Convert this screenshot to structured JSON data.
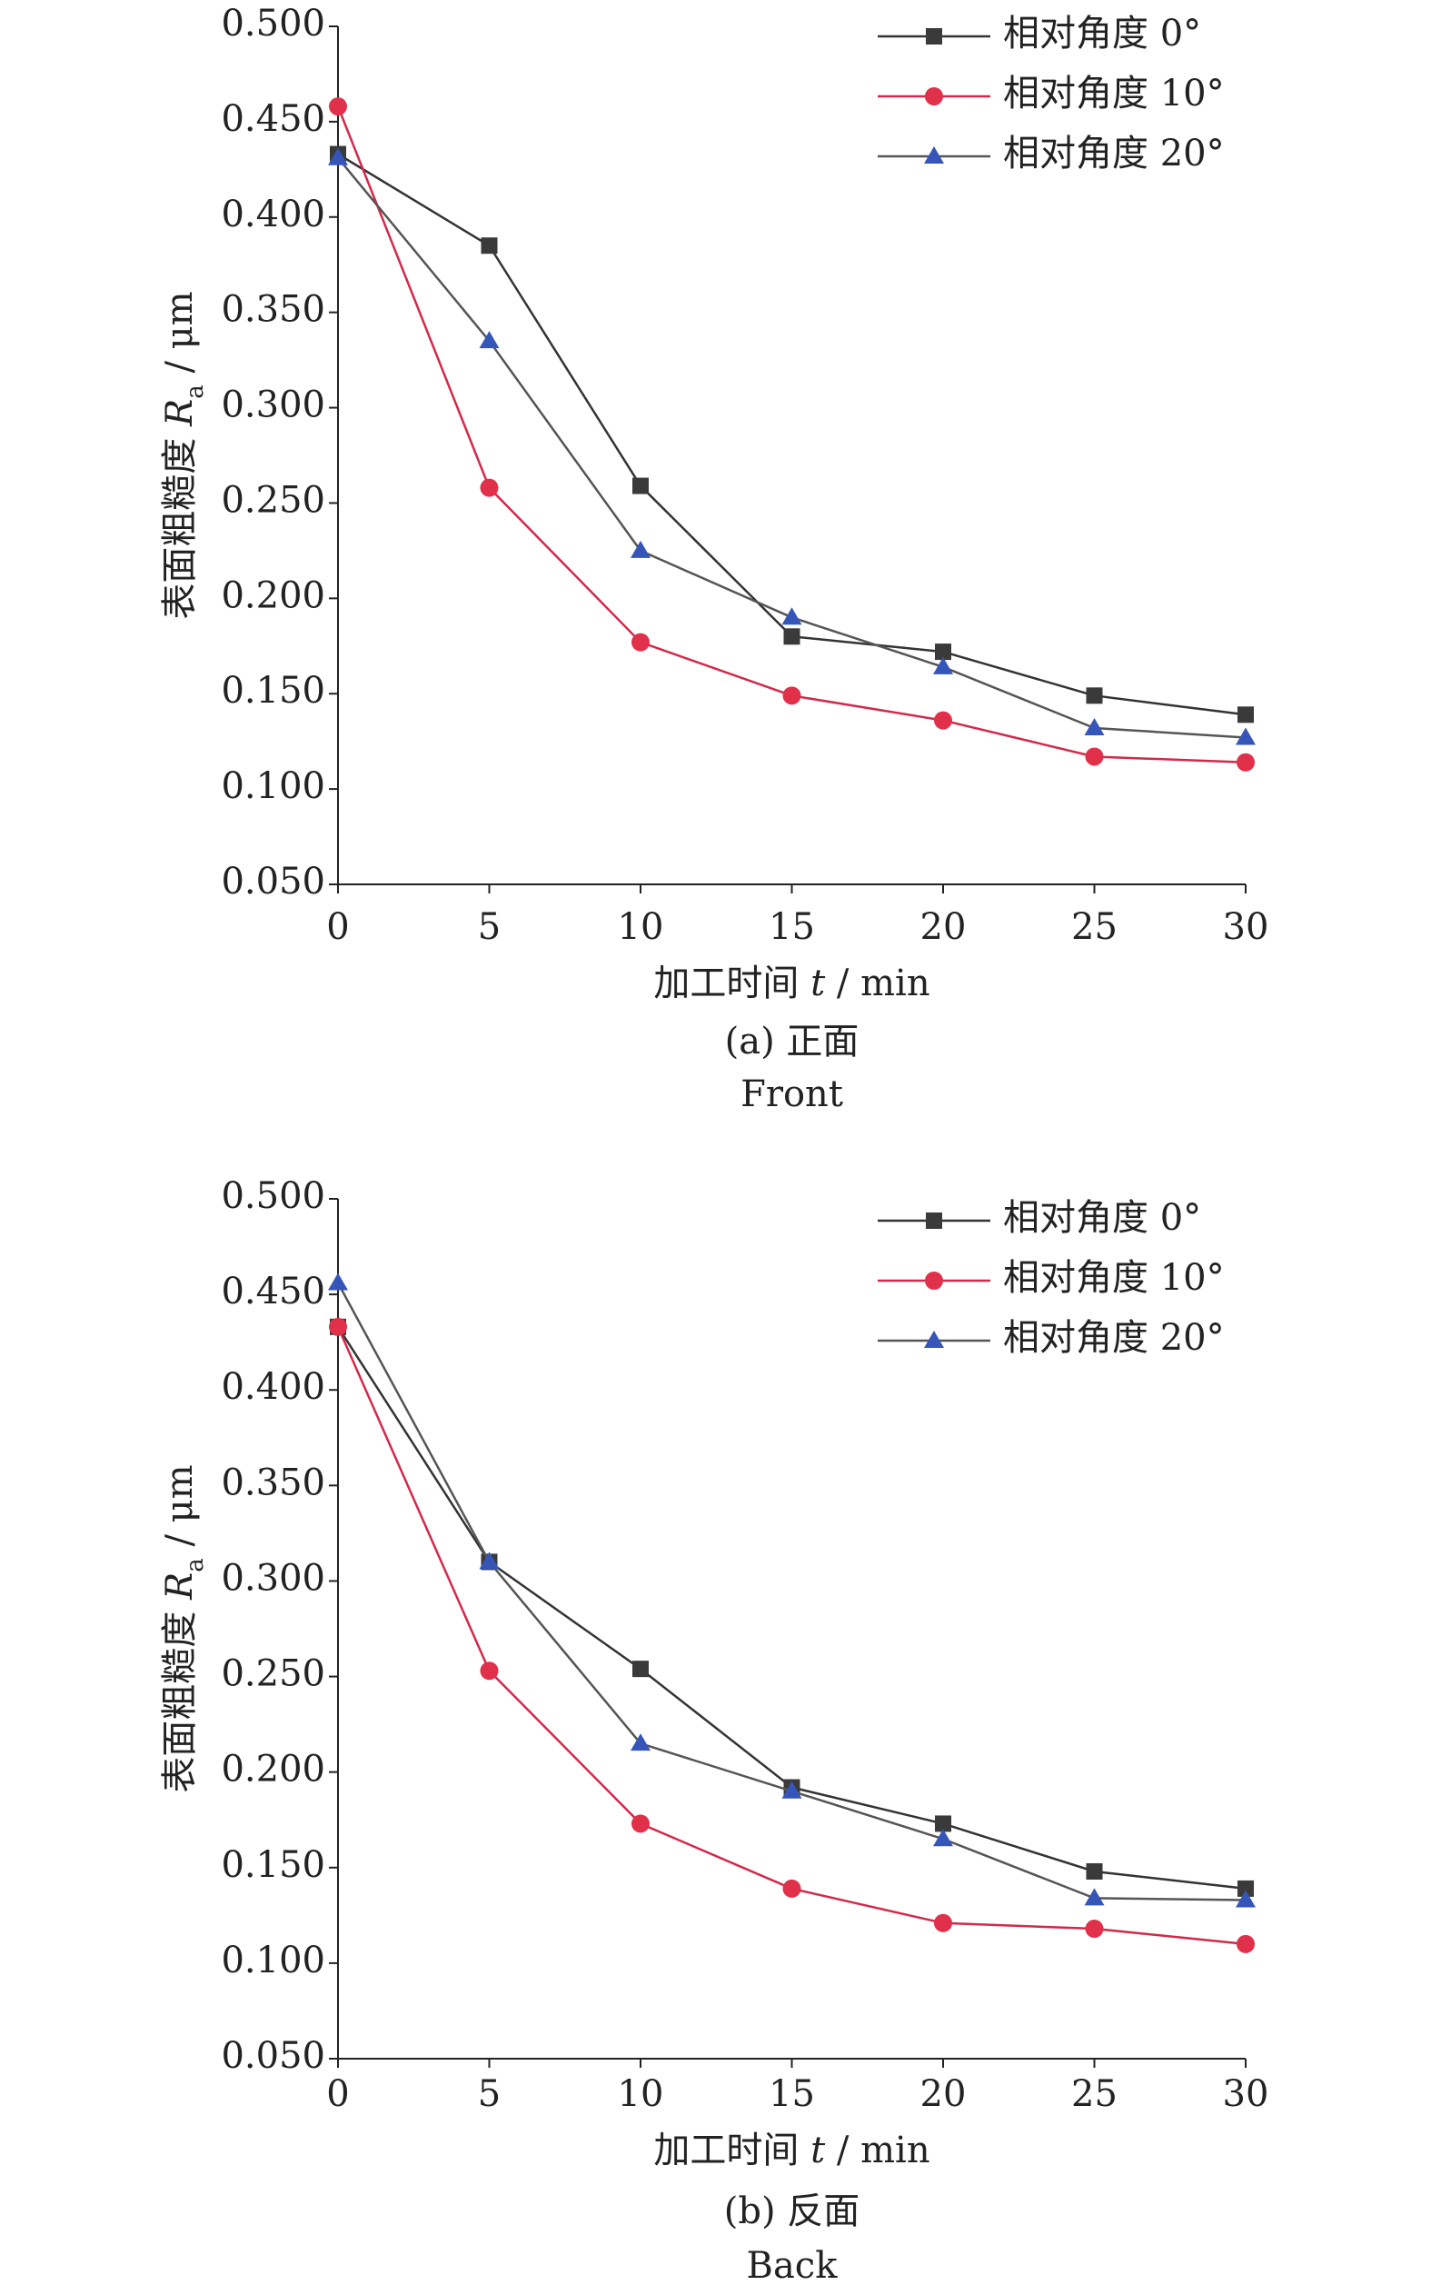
{
  "chart_data": [
    {
      "type": "line",
      "ylabel": [
        "表面粗糙度 ",
        "R",
        "a",
        " / μm"
      ],
      "xlabel": [
        "加工时间 ",
        "t",
        " / min"
      ],
      "caption": "(a) 正面",
      "caption_en": "Front",
      "x": [
        0,
        5,
        10,
        15,
        20,
        25,
        30
      ],
      "xlim": [
        0,
        30
      ],
      "xticks": [
        0,
        5,
        10,
        15,
        20,
        25,
        30
      ],
      "ylim": [
        0.05,
        0.5
      ],
      "yticks": [
        {
          "value": 0.05,
          "label": "0.050"
        },
        {
          "value": 0.1,
          "label": "0.100"
        },
        {
          "value": 0.15,
          "label": "0.150"
        },
        {
          "value": 0.2,
          "label": "0.200"
        },
        {
          "value": 0.25,
          "label": "0.250"
        },
        {
          "value": 0.3,
          "label": "0.300"
        },
        {
          "value": 0.35,
          "label": "0.350"
        },
        {
          "value": 0.4,
          "label": "0.400"
        },
        {
          "value": 0.45,
          "label": "0.450"
        },
        {
          "value": 0.5,
          "label": "0.500"
        }
      ],
      "legend": "upper right",
      "series": [
        {
          "name": "相对角度 0°",
          "color": "#3a3a3a",
          "line_color": "#333333",
          "marker": "square",
          "values": [
            0.433,
            0.385,
            0.259,
            0.18,
            0.172,
            0.149,
            0.139
          ]
        },
        {
          "name": "相对角度 10°",
          "color": "#e0304a",
          "line_color": "#d4284a",
          "marker": "circle",
          "values": [
            0.458,
            0.258,
            0.177,
            0.149,
            0.136,
            0.117,
            0.114
          ]
        },
        {
          "name": "相对角度 20°",
          "color": "#3556b8",
          "line_color": "#555555",
          "marker": "triangle",
          "values": [
            0.431,
            0.335,
            0.225,
            0.19,
            0.164,
            0.132,
            0.127
          ]
        }
      ]
    },
    {
      "type": "line",
      "ylabel": [
        "表面粗糙度 ",
        "R",
        "a",
        " / μm"
      ],
      "xlabel": [
        "加工时间 ",
        "t",
        " / min"
      ],
      "caption": "(b) 反面",
      "caption_en": "Back",
      "x": [
        0,
        5,
        10,
        15,
        20,
        25,
        30
      ],
      "xlim": [
        0,
        30
      ],
      "xticks": [
        0,
        5,
        10,
        15,
        20,
        25,
        30
      ],
      "ylim": [
        0.05,
        0.5
      ],
      "yticks": [
        {
          "value": 0.05,
          "label": "0.050"
        },
        {
          "value": 0.1,
          "label": "0.100"
        },
        {
          "value": 0.15,
          "label": "0.150"
        },
        {
          "value": 0.2,
          "label": "0.200"
        },
        {
          "value": 0.25,
          "label": "0.250"
        },
        {
          "value": 0.3,
          "label": "0.300"
        },
        {
          "value": 0.35,
          "label": "0.350"
        },
        {
          "value": 0.4,
          "label": "0.400"
        },
        {
          "value": 0.45,
          "label": "0.450"
        },
        {
          "value": 0.5,
          "label": "0.500"
        }
      ],
      "legend": "upper right",
      "series": [
        {
          "name": "相对角度 0°",
          "color": "#3a3a3a",
          "line_color": "#333333",
          "marker": "square",
          "values": [
            0.433,
            0.31,
            0.254,
            0.192,
            0.173,
            0.148,
            0.139
          ]
        },
        {
          "name": "相对角度 10°",
          "color": "#e0304a",
          "line_color": "#d4284a",
          "marker": "circle",
          "values": [
            0.433,
            0.253,
            0.173,
            0.139,
            0.121,
            0.118,
            0.11
          ]
        },
        {
          "name": "相对角度 20°",
          "color": "#3556b8",
          "line_color": "#555555",
          "marker": "triangle",
          "values": [
            0.456,
            0.31,
            0.215,
            0.19,
            0.165,
            0.134,
            0.133
          ]
        }
      ]
    }
  ]
}
